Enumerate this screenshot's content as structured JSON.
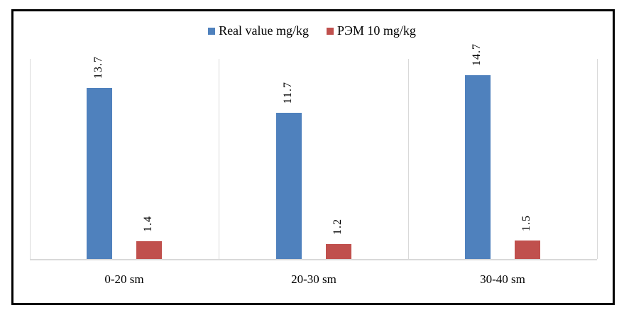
{
  "chart_data": {
    "type": "bar",
    "title": "",
    "categories": [
      "0-20 sm",
      "20-30 sm",
      "30-40 sm"
    ],
    "series": [
      {
        "name": "Real value mg/kg",
        "color": "#4F81BD",
        "values": [
          13.7,
          11.7,
          14.7
        ],
        "data_labels": [
          "13.7",
          "11.7",
          "14.7"
        ]
      },
      {
        "name": "РЭМ 10 mg/kg",
        "color": "#C0504D",
        "values": [
          1.4,
          1.2,
          1.5
        ],
        "data_labels": [
          "1.4",
          "1.2",
          "1.5"
        ]
      }
    ],
    "ylim": [
      0,
      16
    ],
    "xlabel": "",
    "ylabel": "",
    "grid": "vertical category separators only, light gray",
    "legend_position": "top-center",
    "data_labels_rotated_90": true,
    "axis_line_color": "#D9D9D9",
    "frame_border_color": "#000000",
    "text_color": "#000000"
  }
}
